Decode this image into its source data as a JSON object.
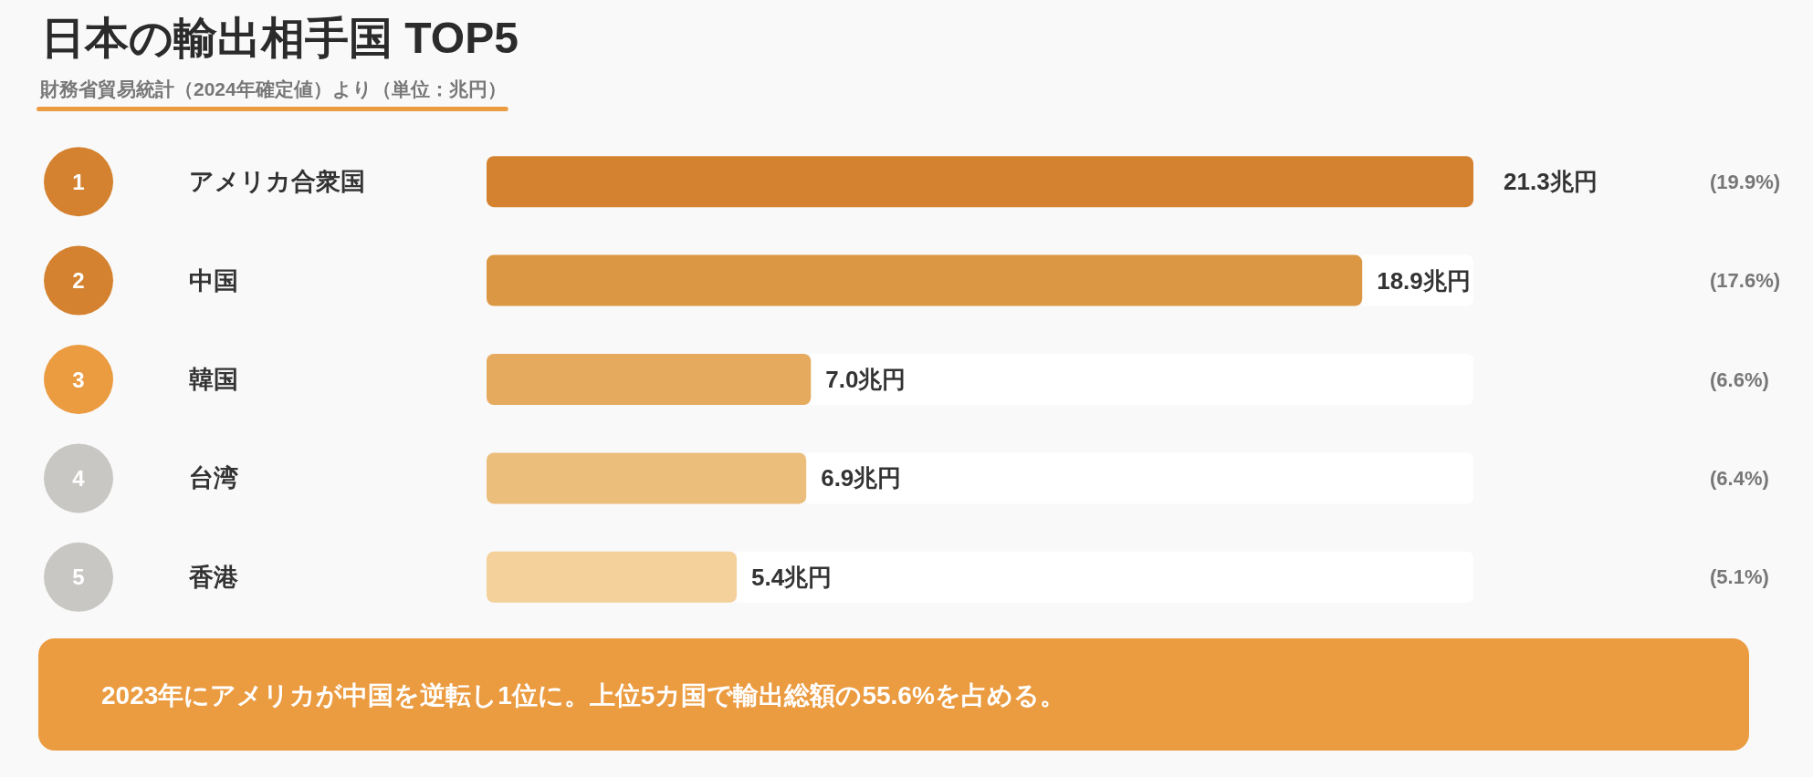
{
  "chart_data": {
    "type": "bar",
    "orientation": "horizontal",
    "title": "日本の輸出相手国 TOP5",
    "subtitle": "財務省貿易統計（2024年確定値）より（単位：兆円）",
    "categories": [
      "アメリカ合衆国",
      "中国",
      "韓国",
      "台湾",
      "香港"
    ],
    "values": [
      21.3,
      18.9,
      7.0,
      6.9,
      5.4
    ],
    "colors": [
      "#d4822f",
      "#db9743",
      "#e5aa5e",
      "#ebbe7c",
      "#f4d19a"
    ],
    "value_labels": [
      "21.3兆円",
      "18.9兆円",
      "7.0兆円",
      "6.9兆円",
      "5.4兆円"
    ],
    "tick_labels": "y",
    "annotations": [
      "1",
      "2",
      "3",
      "4",
      "5",
      "(19.9%)",
      "(17.6%)",
      "(6.6%)",
      "(6.4%)",
      "(5.1%)",
      "2023年にアメリカが中国を逆転し1位に。上位5カ国で輸出総額の55.6%を占める。"
    ]
  }
}
